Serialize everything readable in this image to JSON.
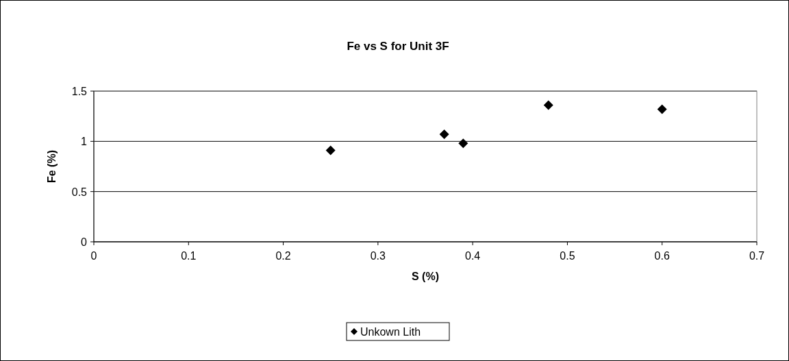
{
  "chart_data": {
    "type": "scatter",
    "title": "Fe vs S for Unit 3F",
    "xlabel": "S (%)",
    "ylabel": "Fe (%)",
    "xlim": [
      0,
      0.7
    ],
    "xticks": [
      0,
      0.1,
      0.2,
      0.3,
      0.4,
      0.5,
      0.6,
      0.7
    ],
    "ylim": [
      0,
      1.5
    ],
    "yticks": [
      0,
      0.5,
      1,
      1.5
    ],
    "grid": "y",
    "legend": "bottom",
    "marker": "diamond",
    "series": [
      {
        "name": "Unkown Lith",
        "color": "#000000",
        "x": [
          0.25,
          0.37,
          0.39,
          0.48,
          0.6
        ],
        "values": [
          0.91,
          1.07,
          0.98,
          1.36,
          1.32
        ]
      }
    ]
  }
}
